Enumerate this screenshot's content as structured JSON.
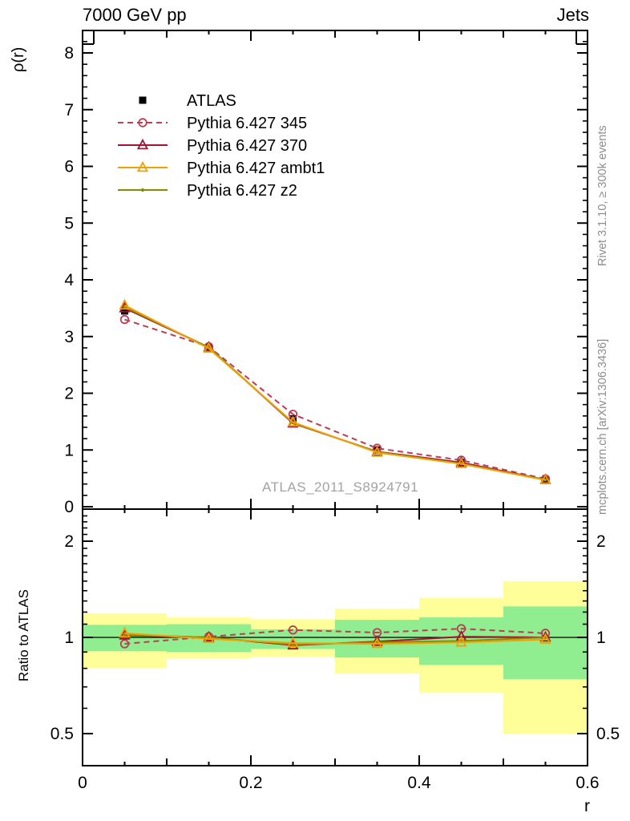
{
  "header": {
    "title_left": "7000 GeV pp",
    "title_right": "Jets"
  },
  "side_notes": {
    "top": "Rivet 3.1.10, ≥ 300k events",
    "bottom": "mcplots.cern.ch [arXiv:1306.3436]"
  },
  "watermark": "ATLAS_2011_S8924791",
  "colors": {
    "frame": "#000000",
    "atlas": "#000000",
    "pythia_345": "#bb3d56",
    "pythia_370": "#a41333",
    "pythia_ambt1": "#f0a000",
    "pythia_z2": "#8a8a00",
    "band_yellow": "#ffff99",
    "band_green": "#90ee90",
    "watermark_gray": "#a3a3a3",
    "sidenote_gray": "#8c8c8c"
  },
  "chart_data": [
    {
      "type": "line",
      "panel": "main",
      "title": "7000 GeV pp",
      "title_right": "Jets",
      "xlabel": "",
      "ylabel": "ρ(r)",
      "xlim": [
        0,
        0.6
      ],
      "ylim": [
        0,
        8.4
      ],
      "grid": false,
      "legend_position": "top-left",
      "x": [
        0.05,
        0.15,
        0.25,
        0.35,
        0.45,
        0.55
      ],
      "series": [
        {
          "name": "ATLAS",
          "color": "#000000",
          "line": "none",
          "marker": "square-filled",
          "values": [
            3.45,
            2.81,
            1.55,
            1.0,
            0.78,
            0.475
          ]
        },
        {
          "name": "Pythia 6.427 345",
          "color": "#bb3d56",
          "line": "dashed",
          "marker": "circle-open",
          "values": [
            3.3,
            2.82,
            1.63,
            1.03,
            0.82,
            0.49
          ]
        },
        {
          "name": "Pythia 6.427 370",
          "color": "#a41333",
          "line": "solid",
          "marker": "triangle-open",
          "values": [
            3.5,
            2.81,
            1.47,
            0.97,
            0.78,
            0.475
          ]
        },
        {
          "name": "Pythia 6.427 ambt1",
          "color": "#f0a000",
          "line": "solid",
          "marker": "triangle-open",
          "values": [
            3.55,
            2.79,
            1.49,
            0.955,
            0.755,
            0.47
          ]
        },
        {
          "name": "Pythia 6.427 z2",
          "color": "#8a8a00",
          "line": "solid",
          "marker": "dot",
          "values": [
            3.52,
            2.81,
            1.48,
            0.965,
            0.76,
            0.475
          ]
        }
      ],
      "xticks": {
        "values": [
          0,
          0.2,
          0.4,
          0.6
        ],
        "labels": [
          "0",
          "0.2",
          "0.4",
          "0.6"
        ],
        "medium_step": 0.1,
        "minor_step": 0.05
      },
      "yticks": {
        "values": [
          0,
          1,
          2,
          3,
          4,
          5,
          6,
          7,
          8
        ],
        "labels": [
          "0",
          "1",
          "2",
          "3",
          "4",
          "5",
          "6",
          "7",
          "8"
        ],
        "minor_step": 0.2
      }
    },
    {
      "type": "line",
      "panel": "ratio",
      "xlabel": "r",
      "ylabel": "Ratio to ATLAS",
      "yscale": "log",
      "xlim": [
        0,
        0.6
      ],
      "ylim": [
        0.4,
        2.52
      ],
      "reference_line": 1,
      "x": [
        0.05,
        0.15,
        0.25,
        0.35,
        0.45,
        0.55
      ],
      "series": [
        {
          "name": "Pythia 6.427 345",
          "color": "#bb3d56",
          "line": "dashed",
          "marker": "circle-open",
          "values": [
            0.955,
            1.005,
            1.055,
            1.035,
            1.065,
            1.03
          ]
        },
        {
          "name": "Pythia 6.427 370",
          "color": "#a41333",
          "line": "solid",
          "marker": "triangle-open",
          "values": [
            1.015,
            1.0,
            0.945,
            0.97,
            1.005,
            1.0
          ]
        },
        {
          "name": "Pythia 6.427 ambt1",
          "color": "#f0a000",
          "line": "solid",
          "marker": "triangle-open",
          "values": [
            1.03,
            0.99,
            0.96,
            0.955,
            0.965,
            0.985
          ]
        },
        {
          "name": "Pythia 6.427 z2",
          "color": "#8a8a00",
          "line": "solid",
          "marker": "dot",
          "values": [
            1.02,
            1.0,
            0.95,
            0.965,
            0.975,
            1.0
          ]
        }
      ],
      "bands": {
        "bins": [
          [
            0,
            0.1
          ],
          [
            0.1,
            0.2
          ],
          [
            0.2,
            0.3
          ],
          [
            0.3,
            0.4
          ],
          [
            0.4,
            0.5
          ],
          [
            0.5,
            0.6
          ]
        ],
        "yellow": [
          [
            0.8,
            1.19
          ],
          [
            0.86,
            1.155
          ],
          [
            0.87,
            1.14
          ],
          [
            0.77,
            1.23
          ],
          [
            0.67,
            1.33
          ],
          [
            0.5,
            1.5
          ]
        ],
        "green": [
          [
            0.905,
            1.095
          ],
          [
            0.9,
            1.1
          ],
          [
            0.92,
            1.06
          ],
          [
            0.865,
            1.135
          ],
          [
            0.82,
            1.155
          ],
          [
            0.74,
            1.25
          ]
        ],
        "yellow_color": "#ffff99",
        "green_color": "#90ee90"
      },
      "yticks": {
        "values": [
          0.5,
          1,
          2
        ],
        "labels": [
          "0.5",
          "1",
          "2"
        ],
        "minors": [
          0.4,
          0.6,
          0.7,
          0.8,
          0.9,
          1.1,
          1.2,
          1.3,
          1.4,
          1.5,
          1.6,
          1.7,
          1.8,
          1.9,
          2.1,
          2.2,
          2.3,
          2.4
        ]
      },
      "xticks": {
        "values": [
          0,
          0.2,
          0.4,
          0.6
        ],
        "labels": [
          "0",
          "0.2",
          "0.4",
          "0.6"
        ],
        "medium_step": 0.1,
        "minor_step": 0.05
      }
    }
  ]
}
